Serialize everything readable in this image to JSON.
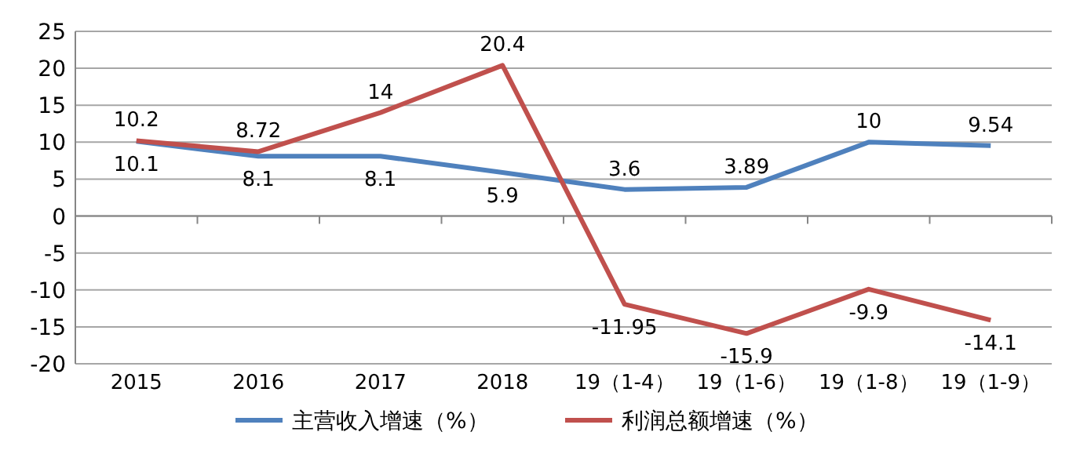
{
  "chart_data": {
    "type": "line",
    "categories": [
      "2015",
      "2016",
      "2017",
      "2018",
      "19（1-4）",
      "19（1-6）",
      "19（1-8）",
      "19（1-9）"
    ],
    "series": [
      {
        "name": "主营收入增速（%）",
        "color": "#4f81bd",
        "values": [
          10.1,
          8.1,
          8.1,
          5.9,
          3.6,
          3.89,
          10,
          9.54
        ]
      },
      {
        "name": "利润总额增速（%）",
        "color": "#c0504d",
        "values": [
          10.2,
          8.72,
          14,
          20.4,
          -11.95,
          -15.9,
          -9.9,
          -14.1
        ]
      }
    ],
    "ylim": [
      -20,
      25
    ],
    "yticks": [
      -20,
      -15,
      -10,
      -5,
      0,
      5,
      10,
      15,
      20,
      25
    ],
    "grid": "y",
    "legend": "bottom",
    "data_labels": true,
    "marker": "none"
  }
}
